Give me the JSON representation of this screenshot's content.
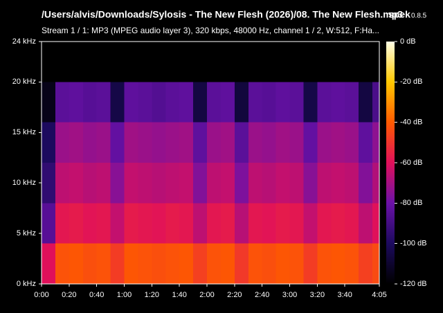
{
  "chart_data": {
    "type": "spectrogram",
    "title": "/Users/alvis/Downloads/Sylosis - The New Flesh (2026)/08. The New Flesh.mp3",
    "app": "spek",
    "version": "0.8.5",
    "subtitle": "Stream 1 / 1: MP3 (MPEG audio layer 3), 320 kbps, 48000 Hz, channel 1 / 2, W:512, F:Ha...",
    "x": [
      0,
      10,
      20,
      30,
      40,
      50,
      60,
      70,
      80,
      90,
      100,
      110,
      120,
      130,
      140,
      150,
      160,
      170,
      180,
      190,
      200,
      210,
      220,
      230,
      240
    ],
    "y": [
      0,
      4,
      8,
      12,
      16,
      20
    ],
    "values": [
      [
        -60,
        -42,
        -41,
        -43,
        -42,
        -48,
        -41,
        -42,
        -43,
        -42,
        -41,
        -47,
        -42,
        -41,
        -49,
        -42,
        -43,
        -41,
        -42,
        -48,
        -42,
        -41,
        -42,
        -47,
        -44
      ],
      [
        -85,
        -58,
        -57,
        -59,
        -58,
        -65,
        -57,
        -58,
        -59,
        -57,
        -58,
        -66,
        -58,
        -57,
        -67,
        -58,
        -59,
        -57,
        -58,
        -65,
        -58,
        -57,
        -58,
        -66,
        -60
      ],
      [
        -95,
        -66,
        -65,
        -67,
        -66,
        -75,
        -65,
        -66,
        -67,
        -66,
        -65,
        -76,
        -66,
        -65,
        -77,
        -66,
        -67,
        -65,
        -66,
        -75,
        -66,
        -65,
        -66,
        -76,
        -68
      ],
      [
        -100,
        -72,
        -71,
        -73,
        -72,
        -82,
        -71,
        -72,
        -73,
        -72,
        -71,
        -83,
        -72,
        -71,
        -84,
        -72,
        -73,
        -71,
        -72,
        -82,
        -72,
        -71,
        -72,
        -83,
        -74
      ],
      [
        -115,
        -84,
        -83,
        -85,
        -84,
        -105,
        -83,
        -84,
        -86,
        -84,
        -83,
        -106,
        -84,
        -83,
        -107,
        -84,
        -85,
        -83,
        -84,
        -105,
        -84,
        -83,
        -84,
        -106,
        -88
      ],
      [
        -120,
        -120,
        -120,
        -120,
        -120,
        -120,
        -120,
        -120,
        -120,
        -120,
        -120,
        -120,
        -120,
        -120,
        -120,
        -120,
        -120,
        -120,
        -120,
        -120,
        -120,
        -120,
        -120,
        -120,
        -120
      ]
    ],
    "xlim": [
      0,
      245
    ],
    "ylim": [
      0,
      24
    ],
    "clim": [
      -120,
      0
    ],
    "xticks": [
      {
        "value": 0,
        "label": "0:00"
      },
      {
        "value": 20,
        "label": "0:20"
      },
      {
        "value": 40,
        "label": "0:40"
      },
      {
        "value": 60,
        "label": "1:00"
      },
      {
        "value": 80,
        "label": "1:20"
      },
      {
        "value": 100,
        "label": "1:40"
      },
      {
        "value": 120,
        "label": "2:00"
      },
      {
        "value": 140,
        "label": "2:20"
      },
      {
        "value": 160,
        "label": "2:40"
      },
      {
        "value": 180,
        "label": "3:00"
      },
      {
        "value": 200,
        "label": "3:20"
      },
      {
        "value": 220,
        "label": "3:40"
      },
      {
        "value": 245,
        "label": "4:05"
      }
    ],
    "yticks": [
      {
        "value": 0,
        "label": "0 kHz"
      },
      {
        "value": 5,
        "label": "5 kHz"
      },
      {
        "value": 10,
        "label": "10 kHz"
      },
      {
        "value": 15,
        "label": "15 kHz"
      },
      {
        "value": 20,
        "label": "20 kHz"
      },
      {
        "value": 24,
        "label": "24 kHz"
      }
    ],
    "cticks": [
      {
        "value": 0,
        "label": "0 dB"
      },
      {
        "value": -20,
        "label": "-20 dB"
      },
      {
        "value": -40,
        "label": "-40 dB"
      },
      {
        "value": -60,
        "label": "-60 dB"
      },
      {
        "value": -80,
        "label": "-80 dB"
      },
      {
        "value": -100,
        "label": "-100 dB"
      },
      {
        "value": -120,
        "label": "-120 dB"
      }
    ],
    "colorscale": [
      "#000000",
      "#1c0a5e",
      "#6b11a8",
      "#e0105a",
      "#ff5a00",
      "#ffc800",
      "#ffffe6"
    ]
  }
}
